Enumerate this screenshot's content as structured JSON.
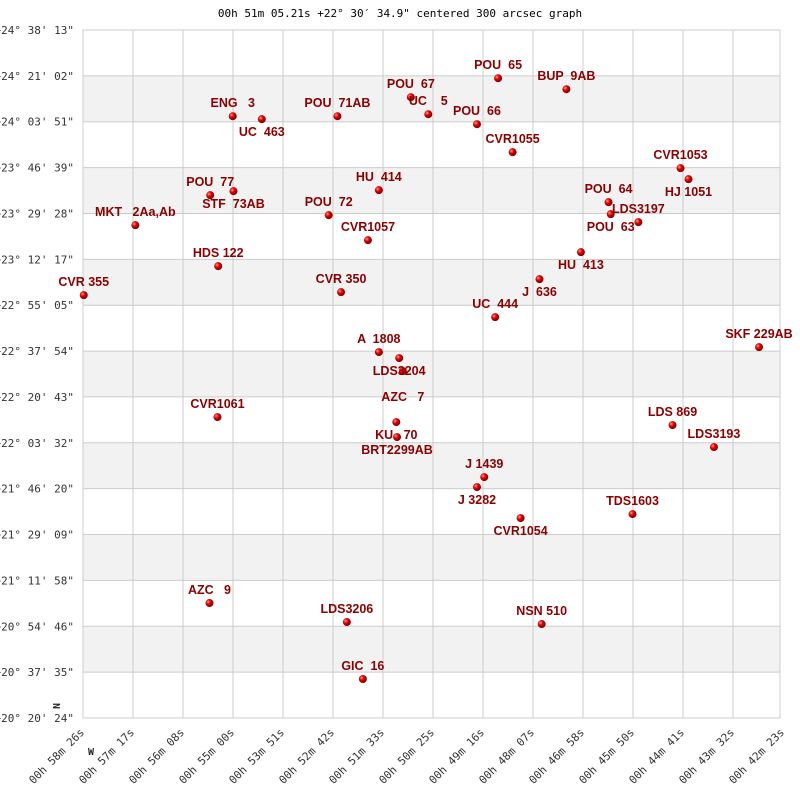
{
  "chart_data": {
    "type": "scatter",
    "title": "00h 51m 05.21s +22° 30′ 34.9\" centered 300 arcsec graph",
    "orientation": {
      "north": "N",
      "west": "W"
    },
    "grid": true,
    "x_ticks": [
      "00h 58m 26s",
      "00h 57m 17s",
      "00h 56m 08s",
      "00h 55m 00s",
      "00h 53m 51s",
      "00h 52m 42s",
      "00h 51m 33s",
      "00h 50m 25s",
      "00h 49m 16s",
      "00h 48m 07s",
      "00h 46m 58s",
      "00h 45m 50s",
      "00h 44m 41s",
      "00h 43m 32s",
      "00h 42m 23s"
    ],
    "y_ticks": [
      "+24° 38' 13\"",
      "+24° 21' 02\"",
      "+24° 03' 51\"",
      "+23° 46' 39\"",
      "+23° 29' 28\"",
      "+23° 12' 17\"",
      "+22° 55' 05\"",
      "+22° 37' 54\"",
      "+22° 20' 43\"",
      "+22° 03' 32\"",
      "+21° 46' 20\"",
      "+21° 29' 09\"",
      "+21° 11' 58\"",
      "+20° 54' 46\"",
      "+20° 37' 35\"",
      "+20° 20' 24\""
    ],
    "xlim": [
      "00h 58m 26s",
      "00h 42m 23s"
    ],
    "ylim": [
      "+20° 20' 24\"",
      "+24° 38' 13\""
    ],
    "colors": {
      "point": "#dd0000",
      "label": "#8b0000",
      "band": "#f2f2f2",
      "grid": "#cccccc"
    },
    "points": [
      {
        "name": "POU  65",
        "ra": "00h 48m 55s",
        "dec": "+24° 20' 09\""
      },
      {
        "name": "BUP  9AB",
        "ra": "00h 47m 21s",
        "dec": "+24° 16' 02\""
      },
      {
        "name": "POU  67",
        "ra": "00h 50m 55s",
        "dec": "+24° 13' 02\""
      },
      {
        "name": "UC    5",
        "ra": "00h 50m 31s",
        "dec": "+24° 06' 40\""
      },
      {
        "name": "POU  66",
        "ra": "00h 49m 24s",
        "dec": "+24° 02' 55\""
      },
      {
        "name": "ENG   3",
        "ra": "00h 55m 00s",
        "dec": "+24° 05' 55\""
      },
      {
        "name": "UC  463",
        "ra": "00h 54m 20s",
        "dec": "+24° 04' 48\""
      },
      {
        "name": "POU  71AB",
        "ra": "00h 52m 36s",
        "dec": "+24° 05' 55\""
      },
      {
        "name": "CVR1055",
        "ra": "00h 48m 35s",
        "dec": "+23° 52' 26\""
      },
      {
        "name": "CVR1053",
        "ra": "00h 44m 44s",
        "dec": "+23° 46' 26\""
      },
      {
        "name": "HJ 1051",
        "ra": "00h 44m 33s",
        "dec": "+23° 42' 19\""
      },
      {
        "name": "POU  77",
        "ra": "00h 55m 31s",
        "dec": "+23° 36' 19\""
      },
      {
        "name": "STF  73AB",
        "ra": "00h 54m 59s",
        "dec": "+23° 37' 49\""
      },
      {
        "name": "HU  414",
        "ra": "00h 51m 39s",
        "dec": "+23° 38' 12\""
      },
      {
        "name": "MKT   2Aa,Ab",
        "ra": "00h 57m 14s",
        "dec": "+23° 25' 05\""
      },
      {
        "name": "POU  72",
        "ra": "00h 52m 48s",
        "dec": "+23° 28' 50\""
      },
      {
        "name": "POU  64",
        "ra": "00h 46m 23s",
        "dec": "+23° 33' 42\""
      },
      {
        "name": "POU  63",
        "ra": "00h 46m 20s",
        "dec": "+23° 29' 12\""
      },
      {
        "name": "LDS3197",
        "ra": "00h 45m 42s",
        "dec": "+23° 26' 13\""
      },
      {
        "name": "CVR1057",
        "ra": "00h 51m 54s",
        "dec": "+23° 19' 28\""
      },
      {
        "name": "HDS 122",
        "ra": "00h 55m 20s",
        "dec": "+23° 09' 44\""
      },
      {
        "name": "HU  413",
        "ra": "00h 47m 01s",
        "dec": "+23° 14' 58\""
      },
      {
        "name": "J  636",
        "ra": "00h 47m 58s",
        "dec": "+23° 04' 51\""
      },
      {
        "name": "CVR 355",
        "ra": "00h 58m 25s",
        "dec": "+22° 58' 52\""
      },
      {
        "name": "CVR 350",
        "ra": "00h 52m 31s",
        "dec": "+22° 59' 59\""
      },
      {
        "name": "UC  444",
        "ra": "00h 48m 59s",
        "dec": "+22° 50' 37\""
      },
      {
        "name": "SKF 229AB",
        "ra": "00h 42m 56s",
        "dec": "+22° 39' 23\""
      },
      {
        "name": "A  1808",
        "ra": "00h 51m 39s",
        "dec": "+22° 37' 31\""
      },
      {
        "name": "LDS3204",
        "ra": "00h 51m 11s",
        "dec": "+22° 35' 16\""
      },
      {
        "name": "AZC   7",
        "ra": "00h 51m 06s",
        "dec": "+22° 30' 24\""
      },
      {
        "name": "CVR1061",
        "ra": "00h 55m 21s",
        "dec": "+22° 13' 10\""
      },
      {
        "name": "KU   70",
        "ra": "00h 51m 15s",
        "dec": "+22° 11' 17\""
      },
      {
        "name": "BRT2299AB",
        "ra": "00h 51m 14s",
        "dec": "+22° 05' 40\""
      },
      {
        "name": "LDS 869",
        "ra": "00h 44m 55s",
        "dec": "+22° 10' 10\""
      },
      {
        "name": "LDS3193",
        "ra": "00h 43m 58s",
        "dec": "+22° 01' 55\""
      },
      {
        "name": "J 1439",
        "ra": "00h 49m 14s",
        "dec": "+21° 50' 41\""
      },
      {
        "name": "J 3282",
        "ra": "00h 49m 24s",
        "dec": "+21° 46' 56\""
      },
      {
        "name": "CVR1054",
        "ra": "00h 48m 24s",
        "dec": "+21° 35' 19\""
      },
      {
        "name": "TDS1603",
        "ra": "00h 45m 50s",
        "dec": "+21° 36' 49\""
      },
      {
        "name": "AZC   9",
        "ra": "00h 55m 32s",
        "dec": "+21° 03' 29\""
      },
      {
        "name": "LDS3206",
        "ra": "00h 52m 23s",
        "dec": "+20° 56' 22\""
      },
      {
        "name": "NSN 510",
        "ra": "00h 47m 55s",
        "dec": "+20° 55' 37\""
      },
      {
        "name": "GIC  16",
        "ra": "00h 52m 01s",
        "dec": "+20° 35' 01\""
      }
    ]
  }
}
